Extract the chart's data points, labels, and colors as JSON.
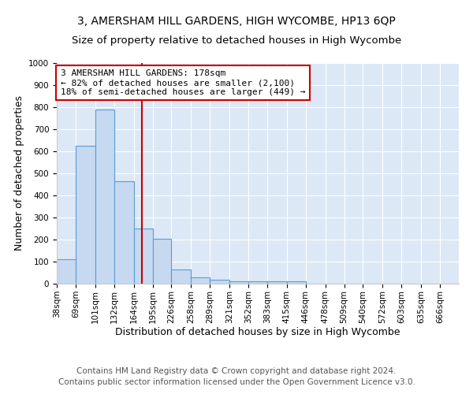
{
  "title": "3, AMERSHAM HILL GARDENS, HIGH WYCOMBE, HP13 6QP",
  "subtitle": "Size of property relative to detached houses in High Wycombe",
  "xlabel": "Distribution of detached houses by size in High Wycombe",
  "ylabel": "Number of detached properties",
  "bin_labels": [
    "38sqm",
    "69sqm",
    "101sqm",
    "132sqm",
    "164sqm",
    "195sqm",
    "226sqm",
    "258sqm",
    "289sqm",
    "321sqm",
    "352sqm",
    "383sqm",
    "415sqm",
    "446sqm",
    "478sqm",
    "509sqm",
    "540sqm",
    "572sqm",
    "603sqm",
    "635sqm",
    "666sqm"
  ],
  "bar_heights": [
    110,
    625,
    790,
    465,
    250,
    205,
    63,
    28,
    17,
    10,
    10,
    10,
    10,
    0,
    0,
    0,
    0,
    0,
    0,
    0,
    0
  ],
  "bar_color": "#c6d9f0",
  "bar_edge_color": "#5b9bd5",
  "bin_edges": [
    38,
    69,
    101,
    132,
    164,
    195,
    226,
    258,
    289,
    321,
    352,
    383,
    415,
    446,
    478,
    509,
    540,
    572,
    603,
    635,
    666,
    697
  ],
  "red_line_x": 178,
  "annotation_line1": "3 AMERSHAM HILL GARDENS: 178sqm",
  "annotation_line2": "← 82% of detached houses are smaller (2,100)",
  "annotation_line3": "18% of semi-detached houses are larger (449) →",
  "annotation_box_color": "white",
  "annotation_box_edge_color": "#cc0000",
  "red_line_color": "#cc0000",
  "ylim": [
    0,
    1000
  ],
  "yticks": [
    0,
    100,
    200,
    300,
    400,
    500,
    600,
    700,
    800,
    900,
    1000
  ],
  "footer_line1": "Contains HM Land Registry data © Crown copyright and database right 2024.",
  "footer_line2": "Contains public sector information licensed under the Open Government Licence v3.0.",
  "background_color": "#dce8f5",
  "fig_background": "#ffffff",
  "title_fontsize": 10,
  "subtitle_fontsize": 9.5,
  "xlabel_fontsize": 9,
  "ylabel_fontsize": 9,
  "tick_fontsize": 7.5,
  "annotation_fontsize": 8,
  "footer_fontsize": 7.5
}
